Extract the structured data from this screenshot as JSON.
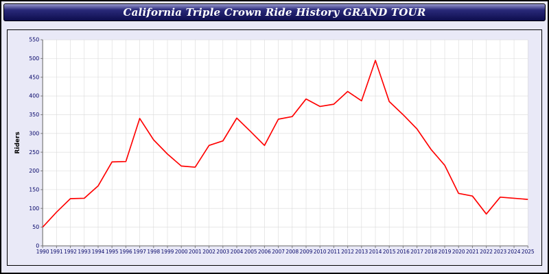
{
  "header": {
    "title": "California Triple Crown Ride History GRAND TOUR"
  },
  "chart_data": {
    "type": "line",
    "title": "California Triple Crown Ride History GRAND TOUR",
    "xlabel": "",
    "ylabel": "Riders",
    "x": [
      "1990",
      "1991",
      "1992",
      "1993",
      "1994",
      "1995",
      "1996",
      "1997",
      "1998",
      "1999",
      "2000",
      "2001",
      "2002",
      "2003",
      "2004",
      "2005",
      "2006",
      "2007",
      "2008",
      "2009",
      "2010",
      "2011",
      "2012",
      "2013",
      "2014",
      "2015",
      "2016",
      "2017",
      "2018",
      "2019",
      "2020",
      "2021",
      "2022",
      "2023",
      "2024",
      "2025"
    ],
    "values": [
      50,
      90,
      126,
      127,
      160,
      224,
      225,
      340,
      283,
      245,
      213,
      210,
      268,
      280,
      341,
      305,
      268,
      338,
      345,
      392,
      372,
      378,
      412,
      387,
      495,
      385,
      350,
      312,
      258,
      215,
      140,
      133,
      85,
      130,
      127,
      124
    ],
    "ylim": [
      0,
      550
    ],
    "ytick_step": 50,
    "grid": true,
    "legend": "none",
    "line_color": "#ff0000",
    "tick_color": "#000066",
    "axis_color": "#777777",
    "grid_color": "#d9d9d9",
    "plot_bg": "#ffffff",
    "panel_bg": "#e9e9f7"
  }
}
